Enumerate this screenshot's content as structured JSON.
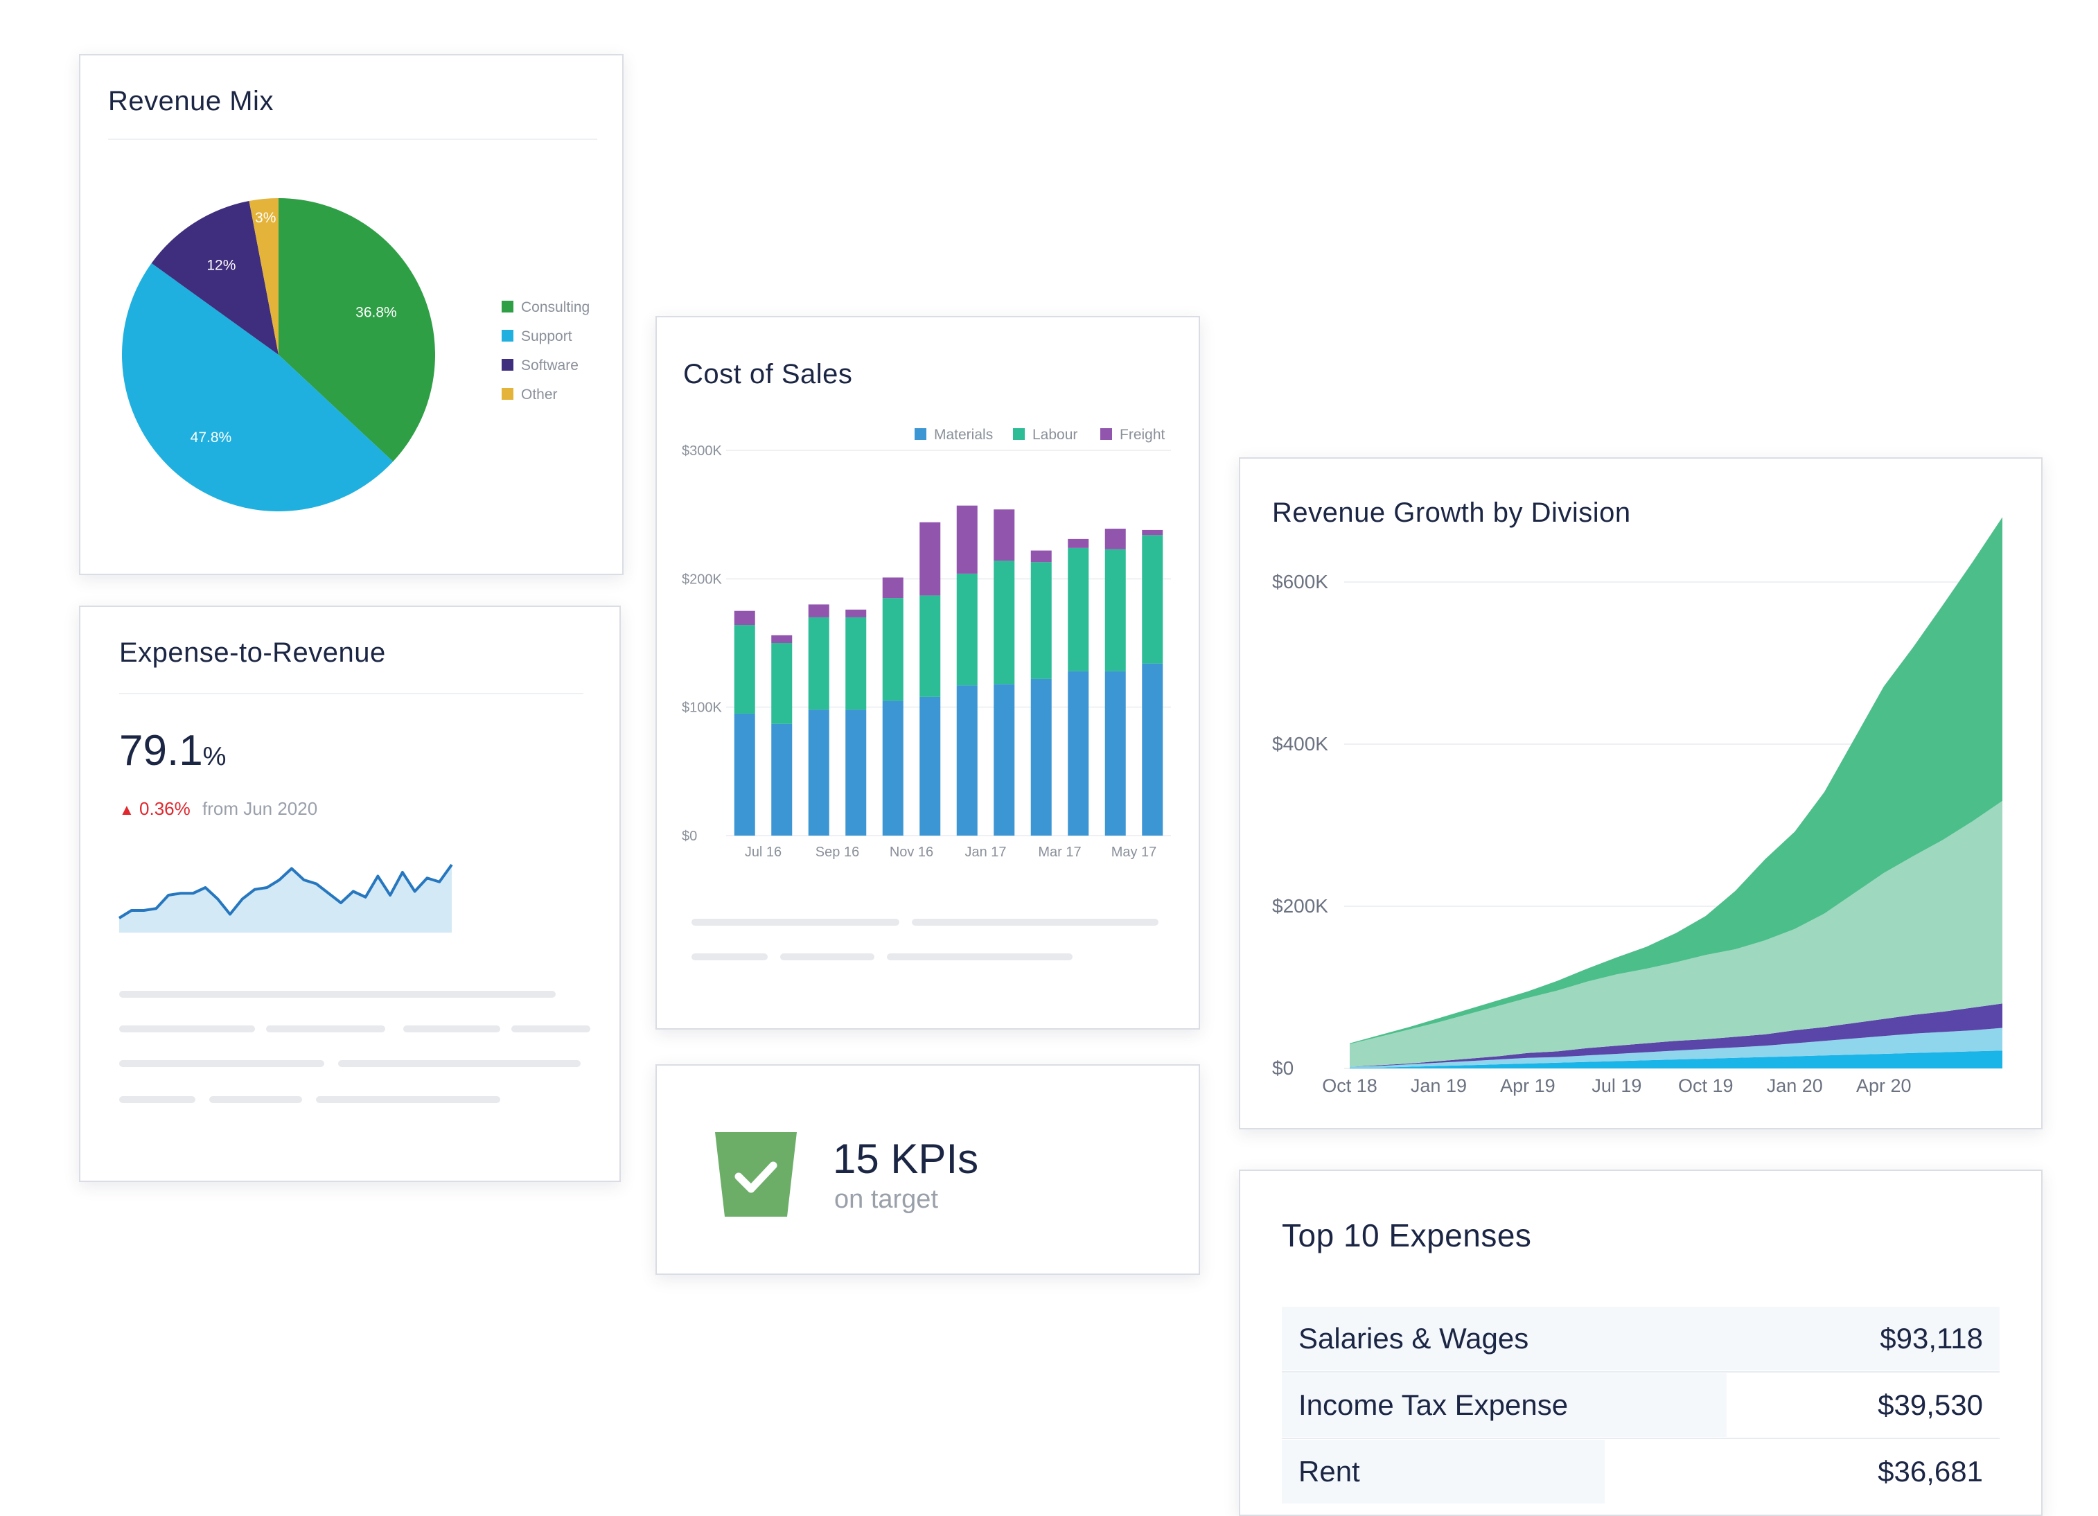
{
  "colors": {
    "consulting": "#2e9f45",
    "support": "#1fb0df",
    "software": "#3f2d7d",
    "other": "#e4b33a",
    "materials": "#3d96d4",
    "labour": "#2cbc96",
    "freight": "#9155ae",
    "growth_1": "#4cbe8a",
    "growth_2": "#9ed9bf",
    "growth_3": "#5a45a8",
    "growth_4": "#8fd5ec",
    "growth_5": "#19b4e8",
    "trend_line": "#2677bf",
    "trend_fill": "#d3eaf6",
    "kpi_badge": "#6cae68"
  },
  "chart_data": [
    {
      "type": "pie",
      "title": "Revenue Mix",
      "slices": [
        {
          "label": "Consulting",
          "value": 36.8,
          "display": "36.8%"
        },
        {
          "label": "Support",
          "value": 47.8,
          "display": "47.8%"
        },
        {
          "label": "Software",
          "value": 12,
          "display": "12%"
        },
        {
          "label": "Other",
          "value": 3,
          "display": "3%"
        }
      ],
      "legend_position": "right"
    },
    {
      "type": "bar",
      "stacked": true,
      "title": "Cost of Sales",
      "categories": [
        "Jul 16",
        "Aug 16",
        "Sep 16",
        "Oct 16",
        "Nov 16",
        "Dec 16",
        "Jan 17",
        "Feb 17",
        "Mar 17",
        "Apr 17",
        "May 17",
        "Jun 17"
      ],
      "tick_labels": [
        "Jul 16",
        "Sep 16",
        "Nov 16",
        "Jan 17",
        "Mar 17",
        "May 17"
      ],
      "series": [
        {
          "name": "Materials",
          "values": [
            95,
            87,
            98,
            98,
            105,
            108,
            117,
            118,
            122,
            128,
            128,
            134
          ]
        },
        {
          "name": "Labour",
          "values": [
            69,
            63,
            72,
            72,
            80,
            79,
            87,
            96,
            91,
            96,
            95,
            100
          ]
        },
        {
          "name": "Freight",
          "values": [
            11,
            6,
            10,
            6,
            16,
            57,
            53,
            40,
            9,
            7,
            16,
            4
          ]
        }
      ],
      "y_ticks": [
        "$0",
        "$100K",
        "$200K",
        "$300K"
      ],
      "ylim": [
        0,
        300000
      ],
      "legend_position": "top-right",
      "grid": true
    },
    {
      "type": "area",
      "stacked": true,
      "title": "Revenue Growth by Division",
      "x": [
        "Oct 18",
        "Nov 18",
        "Dec 18",
        "Jan 19",
        "Feb 19",
        "Mar 19",
        "Apr 19",
        "May 19",
        "Jun 19",
        "Jul 19",
        "Aug 19",
        "Sep 19",
        "Oct 19",
        "Nov 19",
        "Dec 19",
        "Jan 20",
        "Feb 20",
        "Mar 20",
        "Apr 20",
        "May 20",
        "Jun 20",
        "Jul 20",
        "Aug 20"
      ],
      "tick_labels": [
        "Oct 18",
        "Jan 19",
        "Apr 19",
        "Jul 19",
        "Oct 19",
        "Jan 20",
        "Apr 20"
      ],
      "series": [
        {
          "values": [
            1,
            1,
            2,
            3,
            4,
            5,
            6,
            7,
            8,
            9,
            10,
            11,
            12,
            13,
            14,
            15,
            16,
            17,
            18,
            19,
            20,
            21,
            22
          ]
        },
        {
          "values": [
            1,
            2,
            3,
            4,
            5,
            6,
            7,
            7,
            8,
            9,
            10,
            11,
            12,
            13,
            14,
            16,
            18,
            20,
            22,
            24,
            25,
            26,
            28
          ]
        },
        {
          "values": [
            0,
            1,
            1,
            2,
            3,
            4,
            6,
            7,
            9,
            10,
            11,
            12,
            12,
            13,
            14,
            16,
            17,
            19,
            21,
            23,
            25,
            28,
            30
          ]
        },
        {
          "values": [
            28,
            35,
            42,
            48,
            55,
            62,
            68,
            75,
            82,
            88,
            92,
            97,
            104,
            108,
            116,
            125,
            140,
            160,
            180,
            196,
            212,
            230,
            250
          ]
        },
        {
          "values": [
            1,
            2,
            3,
            5,
            6,
            7,
            8,
            12,
            16,
            21,
            27,
            36,
            48,
            72,
            100,
            120,
            150,
            190,
            230,
            258,
            290,
            320,
            350
          ]
        }
      ],
      "y_ticks": [
        "$0",
        "$200K",
        "$400K",
        "$600K"
      ],
      "ylim": [
        0,
        600000
      ],
      "grid": true
    },
    {
      "type": "line",
      "title": "Expense-to-Revenue",
      "values": [
        4,
        8,
        8,
        9,
        16,
        17,
        17,
        20,
        14,
        6,
        14,
        19,
        20,
        24,
        30,
        24,
        22,
        17,
        12,
        18,
        15,
        26,
        16,
        28,
        18,
        25,
        23,
        32
      ]
    }
  ],
  "expense_ratio": {
    "title": "Expense-to-Revenue",
    "value": "79.1",
    "unit": "%",
    "delta": "0.36%",
    "delta_suffix": "from Jun 2020"
  },
  "kpis": {
    "count": "15 KPIs",
    "label": "on target"
  },
  "expenses": {
    "title": "Top 10 Expenses",
    "rows": [
      {
        "label": "Salaries & Wages",
        "amount": "$93,118",
        "share": 1.0
      },
      {
        "label": "Income Tax Expense",
        "amount": "$39,530",
        "share": 0.62
      },
      {
        "label": "Rent",
        "amount": "$36,681",
        "share": 0.45
      }
    ]
  }
}
